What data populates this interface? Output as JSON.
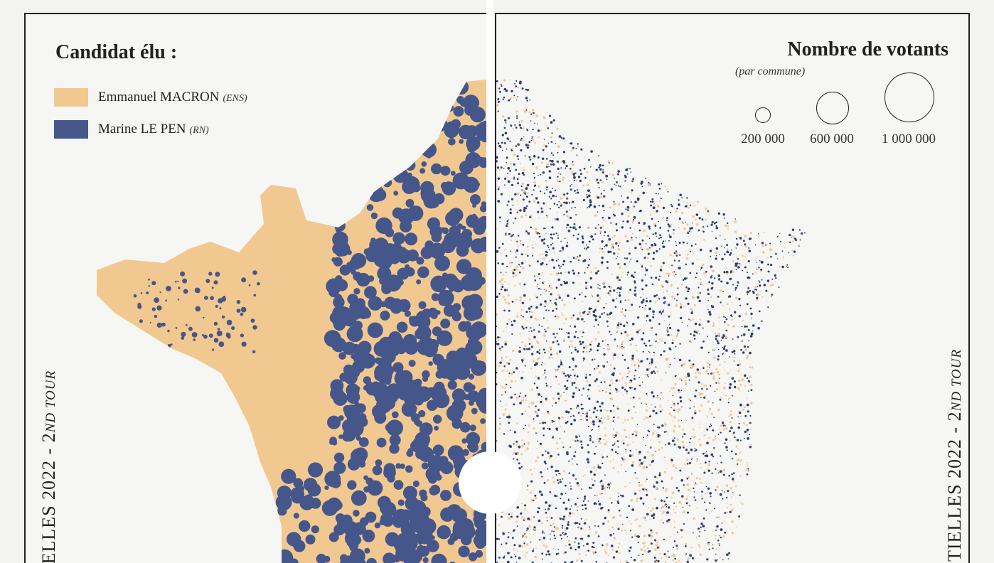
{
  "legend": {
    "title": "Candidat élu :",
    "items": [
      {
        "name": "Emmanuel MACRON",
        "party": "(ENS)",
        "color": "#f2c891"
      },
      {
        "name": "Marine LE PEN",
        "party": "(RN)",
        "color": "#45578a"
      }
    ]
  },
  "votes_legend": {
    "title": "Nombre de votants",
    "subtitle": "(par commune)",
    "sizes": [
      {
        "label": "200 000",
        "value": 200000
      },
      {
        "label": "600 000",
        "value": 600000
      },
      {
        "label": "1 000 000",
        "value": 1000000
      }
    ]
  },
  "side_title": {
    "main": "TIELLES 2022 - 2",
    "suffix": "ND TOUR"
  },
  "colors": {
    "macron": "#f2c891",
    "lepen": "#45578a",
    "lepen_dots": "#2f3f6e",
    "paper": "#f6f6f4"
  }
}
